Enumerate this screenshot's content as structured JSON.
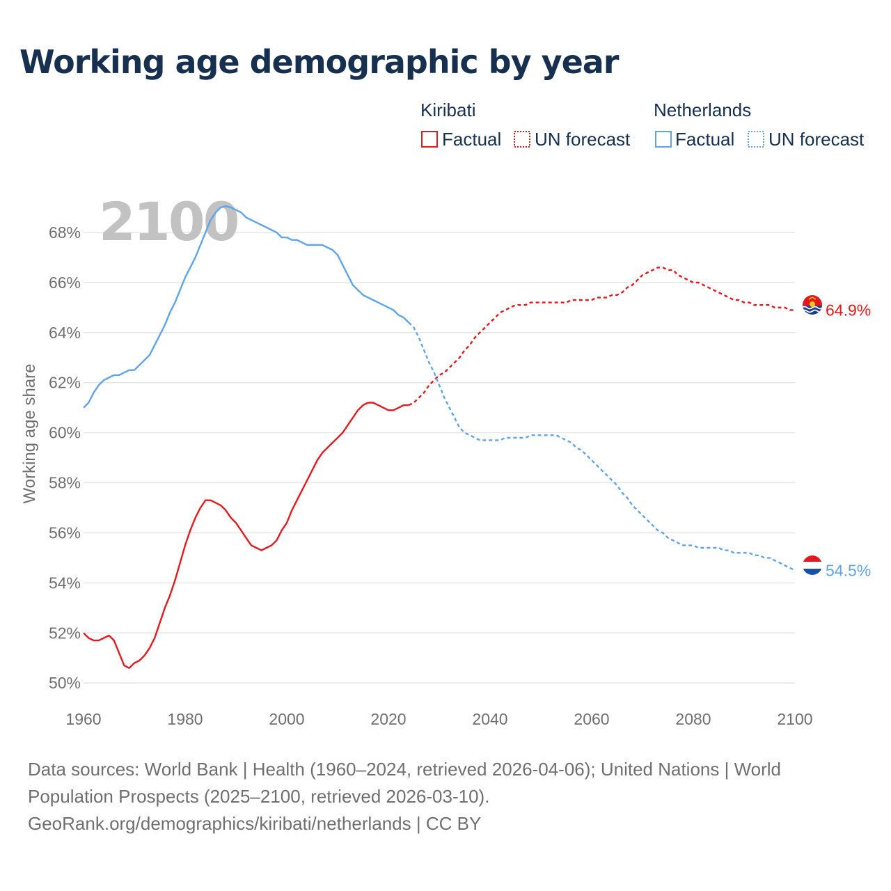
{
  "title": "Working age demographic by year",
  "footer": {
    "line1": "Data sources: World Bank | Health (1960–2024, retrieved 2026-04-06); United Nations | World",
    "line2": "Population Prospects (2025–2100, retrieved 2026-03-10).",
    "line3": "GeoRank.org/demographics/kiribati/netherlands | CC BY"
  },
  "colors": {
    "kiribati": "#e3191c",
    "netherlands": "#5da5e8",
    "grid": "#e6e6e6",
    "axis_text": "#6f6f6f",
    "title": "#17304f",
    "year_watermark": "#c2c2c2"
  },
  "chart_data": {
    "type": "line",
    "year_label": "2100",
    "ylabel": "Working age share",
    "ylim": [
      49.2,
      69.5
    ],
    "xlim": [
      1960,
      2100
    ],
    "yticks": [
      50,
      52,
      54,
      56,
      58,
      60,
      62,
      64,
      66,
      68
    ],
    "ytick_labels": [
      "50%",
      "52%",
      "54%",
      "56%",
      "58%",
      "60%",
      "62%",
      "64%",
      "66%",
      "68%"
    ],
    "xticks": [
      1960,
      1980,
      2000,
      2020,
      2040,
      2060,
      2080,
      2100
    ],
    "xtick_labels": [
      "1960",
      "1980",
      "2000",
      "2020",
      "2040",
      "2060",
      "2080",
      "2100"
    ],
    "legend": {
      "groups": [
        {
          "country": "Kiribati",
          "factual_label": "Factual",
          "forecast_label": "UN forecast"
        },
        {
          "country": "Netherlands",
          "factual_label": "Factual",
          "forecast_label": "UN forecast"
        }
      ]
    },
    "series": [
      {
        "name": "Kiribati",
        "end_label": "64.9%",
        "flag": "kiribati-flag",
        "factual": {
          "x": [
            1960,
            1961,
            1962,
            1963,
            1964,
            1965,
            1966,
            1967,
            1968,
            1969,
            1970,
            1971,
            1972,
            1973,
            1974,
            1975,
            1976,
            1977,
            1978,
            1979,
            1980,
            1981,
            1982,
            1983,
            1984,
            1985,
            1986,
            1987,
            1988,
            1989,
            1990,
            1991,
            1992,
            1993,
            1994,
            1995,
            1996,
            1997,
            1998,
            1999,
            2000,
            2001,
            2002,
            2003,
            2004,
            2005,
            2006,
            2007,
            2008,
            2009,
            2010,
            2011,
            2012,
            2013,
            2014,
            2015,
            2016,
            2017,
            2018,
            2019,
            2020,
            2021,
            2022,
            2023,
            2024
          ],
          "y": [
            52.0,
            51.8,
            51.7,
            51.7,
            51.8,
            51.9,
            51.7,
            51.2,
            50.7,
            50.6,
            50.8,
            50.9,
            51.1,
            51.4,
            51.8,
            52.4,
            53.0,
            53.5,
            54.1,
            54.8,
            55.5,
            56.1,
            56.6,
            57.0,
            57.3,
            57.3,
            57.2,
            57.1,
            56.9,
            56.6,
            56.4,
            56.1,
            55.8,
            55.5,
            55.4,
            55.3,
            55.4,
            55.5,
            55.7,
            56.1,
            56.4,
            56.9,
            57.3,
            57.7,
            58.1,
            58.5,
            58.9,
            59.2,
            59.4,
            59.6,
            59.8,
            60.0,
            60.3,
            60.6,
            60.9,
            61.1,
            61.2,
            61.2,
            61.1,
            61.0,
            60.9,
            60.9,
            61.0,
            61.1,
            61.1
          ]
        },
        "forecast": {
          "x": [
            2024,
            2025,
            2026,
            2027,
            2028,
            2029,
            2030,
            2031,
            2032,
            2033,
            2034,
            2035,
            2036,
            2037,
            2038,
            2039,
            2040,
            2041,
            2042,
            2043,
            2044,
            2045,
            2046,
            2047,
            2048,
            2049,
            2050,
            2051,
            2052,
            2053,
            2054,
            2055,
            2056,
            2057,
            2058,
            2059,
            2060,
            2061,
            2062,
            2063,
            2064,
            2065,
            2066,
            2067,
            2068,
            2069,
            2070,
            2071,
            2072,
            2073,
            2074,
            2075,
            2076,
            2077,
            2078,
            2079,
            2080,
            2081,
            2082,
            2083,
            2084,
            2085,
            2086,
            2087,
            2088,
            2089,
            2090,
            2091,
            2092,
            2093,
            2094,
            2095,
            2096,
            2097,
            2098,
            2099,
            2100
          ],
          "y": [
            61.1,
            61.2,
            61.4,
            61.6,
            61.9,
            62.1,
            62.3,
            62.4,
            62.6,
            62.8,
            63.0,
            63.3,
            63.5,
            63.8,
            64.0,
            64.2,
            64.4,
            64.6,
            64.8,
            64.9,
            65.0,
            65.1,
            65.1,
            65.1,
            65.2,
            65.2,
            65.2,
            65.2,
            65.2,
            65.2,
            65.2,
            65.2,
            65.3,
            65.3,
            65.3,
            65.3,
            65.3,
            65.4,
            65.4,
            65.4,
            65.5,
            65.5,
            65.6,
            65.8,
            65.9,
            66.1,
            66.3,
            66.4,
            66.5,
            66.6,
            66.6,
            66.5,
            66.5,
            66.3,
            66.2,
            66.1,
            66.0,
            66.0,
            65.9,
            65.8,
            65.7,
            65.6,
            65.5,
            65.4,
            65.3,
            65.3,
            65.2,
            65.2,
            65.1,
            65.1,
            65.1,
            65.1,
            65.0,
            65.0,
            65.0,
            64.9,
            64.9
          ]
        }
      },
      {
        "name": "Netherlands",
        "end_label": "54.5%",
        "flag": "netherlands-flag",
        "factual": {
          "x": [
            1960,
            1961,
            1962,
            1963,
            1964,
            1965,
            1966,
            1967,
            1968,
            1969,
            1970,
            1971,
            1972,
            1973,
            1974,
            1975,
            1976,
            1977,
            1978,
            1979,
            1980,
            1981,
            1982,
            1983,
            1984,
            1985,
            1986,
            1987,
            1988,
            1989,
            1990,
            1991,
            1992,
            1993,
            1994,
            1995,
            1996,
            1997,
            1998,
            1999,
            2000,
            2001,
            2002,
            2003,
            2004,
            2005,
            2006,
            2007,
            2008,
            2009,
            2010,
            2011,
            2012,
            2013,
            2014,
            2015,
            2016,
            2017,
            2018,
            2019,
            2020,
            2021,
            2022,
            2023,
            2024
          ],
          "y": [
            61.0,
            61.2,
            61.6,
            61.9,
            62.1,
            62.2,
            62.3,
            62.3,
            62.4,
            62.5,
            62.5,
            62.7,
            62.9,
            63.1,
            63.5,
            63.9,
            64.3,
            64.8,
            65.2,
            65.7,
            66.2,
            66.6,
            67.0,
            67.5,
            68.0,
            68.5,
            68.8,
            69.0,
            69.05,
            69.0,
            68.9,
            68.8,
            68.6,
            68.5,
            68.4,
            68.3,
            68.2,
            68.1,
            68.0,
            67.8,
            67.8,
            67.7,
            67.7,
            67.6,
            67.5,
            67.5,
            67.5,
            67.5,
            67.4,
            67.3,
            67.1,
            66.7,
            66.3,
            65.9,
            65.7,
            65.5,
            65.4,
            65.3,
            65.2,
            65.1,
            65.0,
            64.9,
            64.7,
            64.6,
            64.4
          ]
        },
        "forecast": {
          "x": [
            2024,
            2025,
            2026,
            2027,
            2028,
            2029,
            2030,
            2031,
            2032,
            2033,
            2034,
            2035,
            2036,
            2037,
            2038,
            2039,
            2040,
            2041,
            2042,
            2043,
            2044,
            2045,
            2046,
            2047,
            2048,
            2049,
            2050,
            2051,
            2052,
            2053,
            2054,
            2055,
            2056,
            2057,
            2058,
            2059,
            2060,
            2061,
            2062,
            2063,
            2064,
            2065,
            2066,
            2067,
            2068,
            2069,
            2070,
            2071,
            2072,
            2073,
            2074,
            2075,
            2076,
            2077,
            2078,
            2079,
            2080,
            2081,
            2082,
            2083,
            2084,
            2085,
            2086,
            2087,
            2088,
            2089,
            2090,
            2091,
            2092,
            2093,
            2094,
            2095,
            2096,
            2097,
            2098,
            2099,
            2100
          ],
          "y": [
            64.4,
            64.2,
            63.8,
            63.3,
            62.8,
            62.4,
            61.9,
            61.4,
            61.0,
            60.6,
            60.2,
            60.0,
            59.9,
            59.8,
            59.7,
            59.7,
            59.7,
            59.7,
            59.7,
            59.8,
            59.8,
            59.8,
            59.8,
            59.8,
            59.9,
            59.9,
            59.9,
            59.9,
            59.9,
            59.9,
            59.8,
            59.7,
            59.6,
            59.4,
            59.3,
            59.1,
            58.9,
            58.7,
            58.5,
            58.3,
            58.1,
            57.9,
            57.6,
            57.4,
            57.1,
            56.9,
            56.7,
            56.5,
            56.3,
            56.1,
            56.0,
            55.8,
            55.7,
            55.6,
            55.5,
            55.5,
            55.5,
            55.4,
            55.4,
            55.4,
            55.4,
            55.4,
            55.3,
            55.3,
            55.2,
            55.2,
            55.2,
            55.2,
            55.1,
            55.1,
            55.0,
            55.0,
            54.9,
            54.8,
            54.7,
            54.6,
            54.5
          ]
        }
      }
    ]
  }
}
